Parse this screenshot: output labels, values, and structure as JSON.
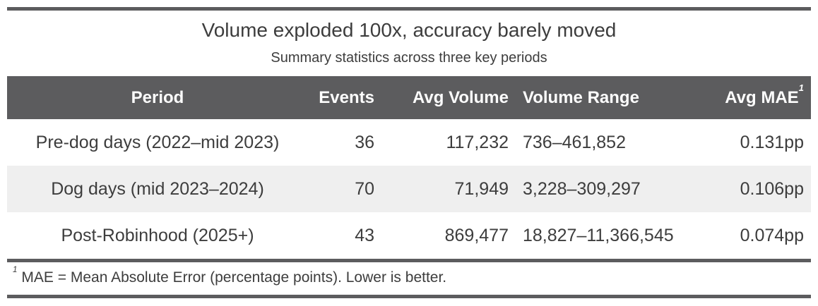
{
  "figure": {
    "title": "Volume exploded 100x, accuracy barely moved",
    "subtitle": "Summary statistics across three key periods",
    "footnote_marker": "1",
    "footnote_text": "MAE = Mean Absolute Error (percentage points). Lower is better."
  },
  "table": {
    "headers": {
      "period": "Period",
      "events": "Events",
      "avg_volume": "Avg Volume",
      "volume_range": "Volume Range",
      "avg_mae": "Avg MAE",
      "avg_mae_footnote_marker": "1"
    },
    "rows": [
      {
        "period": "Pre-dog days (2022–mid 2023)",
        "events": "36",
        "avg_volume": "117,232",
        "volume_range": "736–461,852",
        "avg_mae": "0.131pp"
      },
      {
        "period": "Dog days (mid 2023–2024)",
        "events": "70",
        "avg_volume": "71,949",
        "volume_range": "3,228–309,297",
        "avg_mae": "0.106pp"
      },
      {
        "period": "Post-Robinhood (2025+)",
        "events": "43",
        "avg_volume": "869,477",
        "volume_range": "18,827–11,366,545",
        "avg_mae": "0.074pp"
      }
    ]
  },
  "colors": {
    "header_background": "#5c5c5e",
    "rule": "#5c5c5e",
    "stripe_row_background": "#efefef",
    "body_text": "#3d3d3d",
    "header_text": "#fdfdfd"
  },
  "chart_data": {
    "type": "table",
    "title": "Volume exploded 100x, accuracy barely moved",
    "subtitle": "Summary statistics across three key periods",
    "columns": [
      "Period",
      "Events",
      "Avg Volume",
      "Volume Range",
      "Avg MAE"
    ],
    "rows": [
      [
        "Pre-dog days (2022–mid 2023)",
        36,
        117232,
        "736–461,852",
        "0.131pp"
      ],
      [
        "Dog days (mid 2023–2024)",
        70,
        71949,
        "3,228–309,297",
        "0.106pp"
      ],
      [
        "Post-Robinhood (2025+)",
        43,
        869477,
        "18,827–11,366,545",
        "0.074pp"
      ]
    ],
    "footnote": "1 MAE = Mean Absolute Error (percentage points). Lower is better."
  }
}
